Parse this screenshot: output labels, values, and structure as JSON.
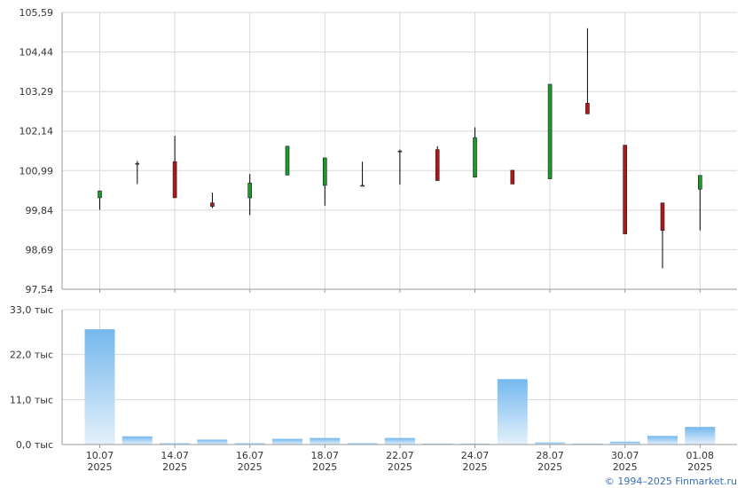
{
  "chart_data": [
    {
      "type": "candlestick",
      "title": "",
      "ylim": [
        97.54,
        105.59
      ],
      "y_ticks": [
        "105,59",
        "104,44",
        "103,29",
        "102,14",
        "100,99",
        "99,84",
        "98,69",
        "97,54"
      ],
      "grid": true,
      "candles": [
        {
          "date": "10.07.2025",
          "open": 100.2,
          "high": 100.4,
          "low": 99.85,
          "close": 100.4
        },
        {
          "date": "11.07.2025",
          "open": 101.2,
          "high": 101.27,
          "low": 100.6,
          "close": 101.2
        },
        {
          "date": "14.07.2025",
          "open": 101.25,
          "high": 102.0,
          "low": 100.2,
          "close": 100.2
        },
        {
          "date": "15.07.2025",
          "open": 100.05,
          "high": 100.35,
          "low": 99.9,
          "close": 99.95
        },
        {
          "date": "16.07.2025",
          "open": 100.2,
          "high": 100.89,
          "low": 99.7,
          "close": 100.63
        },
        {
          "date": "17.07.2025",
          "open": 100.86,
          "high": 101.7,
          "low": 100.86,
          "close": 101.7
        },
        {
          "date": "18.07.2025",
          "open": 100.56,
          "high": 101.36,
          "low": 99.97,
          "close": 101.36
        },
        {
          "date": "21.07.2025",
          "open": 100.55,
          "high": 101.25,
          "low": 100.55,
          "close": 100.56
        },
        {
          "date": "22.07.2025",
          "open": 101.56,
          "high": 101.6,
          "low": 100.58,
          "close": 101.56
        },
        {
          "date": "23.07.2025",
          "open": 101.6,
          "high": 101.7,
          "low": 100.7,
          "close": 100.7
        },
        {
          "date": "24.07.2025",
          "open": 100.8,
          "high": 102.25,
          "low": 100.8,
          "close": 101.95
        },
        {
          "date": "25.07.2025",
          "open": 101.0,
          "high": 101.0,
          "low": 100.6,
          "close": 100.6
        },
        {
          "date": "28.07.2025",
          "open": 100.75,
          "high": 103.5,
          "low": 100.75,
          "close": 103.5
        },
        {
          "date": "29.07.2025",
          "open": 102.95,
          "high": 105.13,
          "low": 102.64,
          "close": 102.64
        },
        {
          "date": "30.07.2025",
          "open": 101.73,
          "high": 101.73,
          "low": 99.15,
          "close": 99.15
        },
        {
          "date": "31.07.2025",
          "open": 100.05,
          "high": 100.05,
          "low": 98.15,
          "close": 99.25
        },
        {
          "date": "01.08.2025",
          "open": 100.45,
          "high": 100.85,
          "low": 99.25,
          "close": 100.85
        }
      ]
    },
    {
      "type": "bar",
      "title": "",
      "ylim": [
        0,
        33
      ],
      "y_ticks": [
        "33,0 тыс",
        "22,0 тыс",
        "11,0 тыс",
        "0,0 тыс"
      ],
      "grid": true,
      "categories": [
        "10.07.2025",
        "11.07.2025",
        "14.07.2025",
        "15.07.2025",
        "16.07.2025",
        "17.07.2025",
        "18.07.2025",
        "21.07.2025",
        "22.07.2025",
        "23.07.2025",
        "24.07.2025",
        "25.07.2025",
        "28.07.2025",
        "29.07.2025",
        "30.07.2025",
        "31.07.2025",
        "01.08.2025"
      ],
      "values": [
        28.2,
        2.0,
        0.3,
        1.2,
        0.3,
        1.4,
        1.6,
        0.3,
        1.6,
        0.2,
        0.2,
        16.0,
        0.5,
        0.2,
        0.7,
        2.1,
        4.3
      ],
      "x_ticks": [
        {
          "date": "10.07",
          "year": "2025",
          "index": 0
        },
        {
          "date": "14.07",
          "year": "2025",
          "index": 2
        },
        {
          "date": "16.07",
          "year": "2025",
          "index": 4
        },
        {
          "date": "18.07",
          "year": "2025",
          "index": 6
        },
        {
          "date": "22.07",
          "year": "2025",
          "index": 8
        },
        {
          "date": "24.07",
          "year": "2025",
          "index": 10
        },
        {
          "date": "28.07",
          "year": "2025",
          "index": 12
        },
        {
          "date": "30.07",
          "year": "2025",
          "index": 14
        },
        {
          "date": "01.08",
          "year": "2025",
          "index": 16
        }
      ]
    }
  ],
  "colors": {
    "up": "#1a9a2a",
    "down": "#b01818",
    "wick": "#000000",
    "grid": "#d8d8d8",
    "axis": "#999999",
    "volume_top": "#74b8ee",
    "volume_bottom": "#e3f0fb"
  },
  "credit": "© 1994–2025 Finmarket.ru"
}
